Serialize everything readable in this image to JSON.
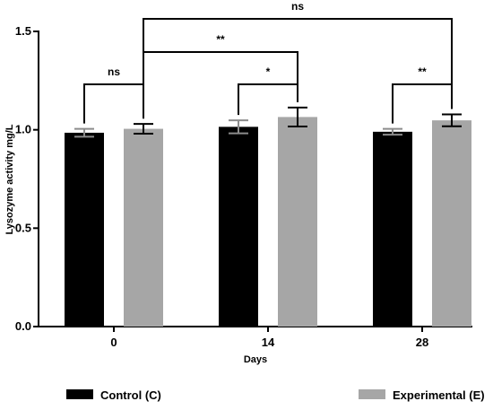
{
  "chart_data": {
    "type": "bar",
    "xlabel": "Days",
    "ylabel": "Lysozyme activity mg/L",
    "categories": [
      "0",
      "14",
      "28"
    ],
    "ylim": [
      0,
      1.5
    ],
    "yticks": [
      "0.0",
      "0.5",
      "1.0",
      "1.5"
    ],
    "grid": false,
    "legend_placement": "bottom",
    "series": [
      {
        "name": "Control (C)",
        "color": "#000000",
        "errorColor": "#8c8c8c",
        "values": [
          0.985,
          1.015,
          0.99
        ],
        "errors": [
          0.02,
          0.033,
          0.015
        ]
      },
      {
        "name": "Experimental (E)",
        "color": "#a6a6a6",
        "errorColor": "#000000",
        "values": [
          1.005,
          1.065,
          1.048
        ],
        "errors": [
          0.025,
          0.048,
          0.03
        ]
      }
    ],
    "significance": [
      {
        "label": "ns",
        "from": {
          "category": 0,
          "series": 0
        },
        "to": {
          "category": 0,
          "series": 1
        }
      },
      {
        "label": "*",
        "from": {
          "category": 1,
          "series": 0
        },
        "to": {
          "category": 1,
          "series": 1
        }
      },
      {
        "label": "**",
        "from": {
          "category": 2,
          "series": 0
        },
        "to": {
          "category": 2,
          "series": 1
        }
      },
      {
        "label": "**",
        "from": {
          "category": 0,
          "series": 1
        },
        "to": {
          "category": 1,
          "series": 1
        }
      },
      {
        "label": "ns",
        "from": {
          "category": 0,
          "series": 1
        },
        "to": {
          "category": 2,
          "series": 1
        }
      }
    ]
  }
}
